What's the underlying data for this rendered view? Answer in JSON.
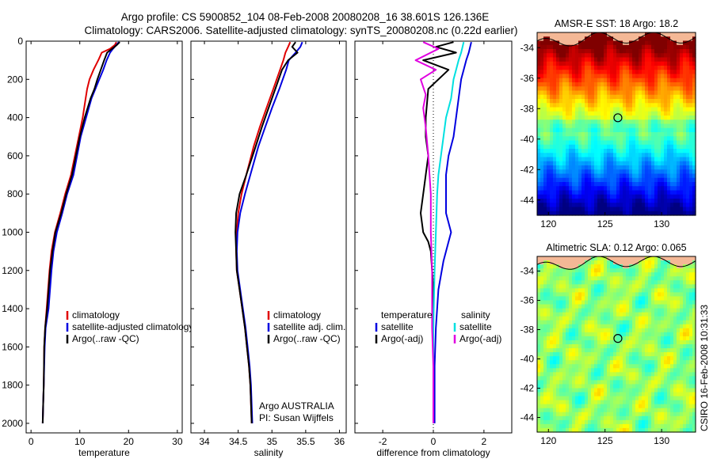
{
  "figure": {
    "title_line1": "Argo profile: CS 5900852_104 08-Feb-2008 20080208_16 38.601S 126.136E",
    "title_line2": "Climatology: CARS2006. Satellite-adjusted climatology: synTS_20080208.nc (0.22d earlier)",
    "footer_vertical": "CSIRO 16-Feb-2008 10:31:33"
  },
  "colors": {
    "climatology": "#e00000",
    "satellite": "#0000e0",
    "argo": "#000000",
    "temperature_diff": "#00e0e0",
    "salinity_diff": "#e000e0",
    "land": "#f4b896"
  },
  "chart_data": [
    {
      "type": "line",
      "xlabel": "temperature",
      "ylabel": "",
      "xlim": [
        -1,
        31
      ],
      "ylim": [
        2050,
        0
      ],
      "xticks": [
        "0",
        "10",
        "20",
        "30"
      ],
      "yticks": [
        "0",
        "200",
        "400",
        "600",
        "800",
        "1000",
        "1200",
        "1400",
        "1600",
        "1800",
        "2000"
      ],
      "legend": [
        "climatology",
        "satellite-adjusted climatology",
        "Argo(..raw -QC)"
      ],
      "series": [
        {
          "name": "climatology",
          "color": "#e00000",
          "x": [
            17.5,
            17.2,
            16.2,
            14.5,
            13.8,
            12.8,
            12.0,
            11.5,
            11.2,
            10.6,
            9.8,
            8.2,
            7.0,
            6.0,
            4.9,
            4.2,
            3.8,
            3.2,
            2.9,
            2.7,
            2.6,
            2.5,
            2.4
          ],
          "y": [
            5,
            20,
            40,
            60,
            100,
            150,
            200,
            250,
            300,
            400,
            500,
            700,
            800,
            900,
            1000,
            1100,
            1200,
            1400,
            1500,
            1600,
            1800,
            1900,
            2000
          ]
        },
        {
          "name": "satellite-adjusted climatology",
          "color": "#0000e0",
          "x": [
            18.0,
            17.5,
            16.8,
            16.2,
            15.5,
            14.8,
            14.0,
            13.2,
            12.4,
            11.3,
            10.2,
            8.7,
            7.4,
            6.4,
            5.3,
            4.6,
            4.2,
            3.6,
            3.0,
            2.8,
            2.6,
            2.5,
            2.4
          ],
          "y": [
            5,
            20,
            40,
            60,
            100,
            150,
            200,
            250,
            300,
            400,
            500,
            700,
            800,
            900,
            1000,
            1100,
            1200,
            1400,
            1500,
            1600,
            1800,
            1900,
            2000
          ]
        },
        {
          "name": "Argo(..raw -QC)",
          "color": "#000000",
          "x": [
            18.2,
            17.6,
            16.6,
            15.6,
            15.0,
            14.3,
            13.6,
            13.0,
            12.2,
            11.0,
            10.0,
            8.4,
            7.2,
            6.2,
            5.0,
            4.4,
            3.9,
            3.3,
            2.9,
            2.7,
            2.6,
            2.5,
            2.4
          ],
          "y": [
            5,
            20,
            40,
            60,
            100,
            150,
            200,
            250,
            300,
            400,
            500,
            700,
            800,
            900,
            1000,
            1100,
            1200,
            1400,
            1500,
            1600,
            1800,
            1900,
            2000
          ]
        }
      ]
    },
    {
      "type": "line",
      "xlabel": "salinity",
      "ylabel": "",
      "xlim": [
        33.8,
        36.1
      ],
      "ylim": [
        2050,
        0
      ],
      "xticks": [
        "34",
        "34.5",
        "35",
        "35.5",
        "36"
      ],
      "legend": [
        "climatology",
        "satellite adj. clim.",
        "Argo(..raw -QC)"
      ],
      "annotation": [
        "Argo AUSTRALIA",
        "PI: Susan Wijffels"
      ],
      "series": [
        {
          "name": "climatology",
          "color": "#e00000",
          "x": [
            35.27,
            35.24,
            35.2,
            35.17,
            35.12,
            35.02,
            34.92,
            34.82,
            34.73,
            34.62,
            34.55,
            34.5,
            34.48,
            34.47,
            34.48,
            34.52,
            34.56,
            34.6,
            34.63,
            34.66,
            34.68,
            34.7
          ],
          "y": [
            5,
            30,
            60,
            100,
            150,
            250,
            350,
            450,
            550,
            700,
            800,
            900,
            1000,
            1100,
            1200,
            1300,
            1400,
            1500,
            1600,
            1700,
            1800,
            2000
          ]
        },
        {
          "name": "satellite adj. clim.",
          "color": "#0000e0",
          "x": [
            35.45,
            35.42,
            35.35,
            35.25,
            35.21,
            35.11,
            35.0,
            34.9,
            34.8,
            34.68,
            34.6,
            34.53,
            34.49,
            34.48,
            34.49,
            34.53,
            34.57,
            34.61,
            34.64,
            34.67,
            34.69,
            34.71
          ],
          "y": [
            5,
            30,
            60,
            100,
            150,
            250,
            350,
            450,
            550,
            700,
            800,
            900,
            1000,
            1100,
            1200,
            1300,
            1400,
            1500,
            1600,
            1700,
            1800,
            2000
          ]
        },
        {
          "name": "Argo(..raw -QC)",
          "color": "#000000",
          "x": [
            35.35,
            35.3,
            35.38,
            35.24,
            35.15,
            35.05,
            34.95,
            34.85,
            34.76,
            34.62,
            34.52,
            34.47,
            34.46,
            34.47,
            34.48,
            34.52,
            34.56,
            34.6,
            34.63,
            34.66,
            34.68,
            34.7
          ],
          "y": [
            5,
            30,
            60,
            100,
            150,
            250,
            350,
            450,
            550,
            700,
            800,
            900,
            1000,
            1100,
            1200,
            1300,
            1400,
            1500,
            1600,
            1700,
            1800,
            2000
          ]
        }
      ]
    },
    {
      "type": "line",
      "xlabel": "difference from climatology",
      "ylabel": "",
      "xlim": [
        -3.1,
        3.1
      ],
      "ylim": [
        2050,
        0
      ],
      "xticks": [
        "-2",
        "0",
        "2"
      ],
      "legend": [
        "temperature",
        "satellite",
        "Argo(-adj)",
        "salinity",
        "satellite",
        "Argo(-adj)"
      ],
      "series": [
        {
          "name": "temperature satellite",
          "color": "#0000e0",
          "x": [
            1.5,
            1.4,
            1.3,
            1.2,
            1.1,
            1.0,
            0.9,
            0.8,
            0.6,
            0.5,
            0.5,
            0.5,
            0.6,
            0.7,
            0.6,
            0.5,
            0.4,
            0.2,
            0.1,
            0.05,
            0.05,
            0.05
          ],
          "y": [
            5,
            60,
            100,
            150,
            200,
            300,
            400,
            500,
            600,
            700,
            800,
            900,
            950,
            1000,
            1050,
            1100,
            1150,
            1300,
            1500,
            1700,
            1900,
            2000
          ]
        },
        {
          "name": "temperature Argo(-adj)",
          "color": "#000000",
          "x": [
            0.8,
            0.1,
            0.9,
            -0.4,
            0.6,
            -0.2,
            -0.3,
            -0.3,
            -0.2,
            -0.3,
            -0.4,
            -0.5,
            -0.4,
            -0.2,
            -0.1,
            0.0,
            0.0,
            0.0,
            0.0
          ],
          "y": [
            5,
            30,
            60,
            100,
            150,
            250,
            400,
            500,
            600,
            700,
            800,
            900,
            1000,
            1050,
            1100,
            1300,
            1500,
            1800,
            2000
          ]
        },
        {
          "name": "salinity satellite",
          "color": "#00e0e0",
          "x": [
            1.2,
            1.1,
            1.0,
            0.9,
            0.8,
            0.7,
            0.5,
            0.4,
            0.3,
            0.2,
            0.15,
            0.1,
            0.05,
            0.0,
            0.0,
            0.0
          ],
          "y": [
            5,
            60,
            100,
            150,
            200,
            300,
            400,
            500,
            600,
            700,
            800,
            1000,
            1200,
            1500,
            1800,
            2000
          ]
        },
        {
          "name": "salinity Argo(-adj)",
          "color": "#e000e0",
          "x": [
            -0.4,
            0.2,
            -0.7,
            0.1,
            -0.5,
            -0.3,
            -0.4,
            -0.3,
            -0.2,
            -0.1,
            -0.1,
            -0.05,
            -0.05,
            0.0,
            0.0,
            0.0
          ],
          "y": [
            5,
            40,
            100,
            150,
            200,
            280,
            350,
            450,
            600,
            800,
            1000,
            1200,
            1500,
            1700,
            1900,
            2000
          ]
        }
      ]
    },
    {
      "type": "heatmap",
      "title": "AMSR-E SST: 18 Argo: 18.2",
      "xlim": [
        119,
        133
      ],
      "ylim": [
        -45,
        -33
      ],
      "xticks": [
        "120",
        "125",
        "130"
      ],
      "yticks": [
        "-34",
        "-36",
        "-38",
        "-40",
        "-42",
        "-44"
      ],
      "argo_location": {
        "lon": 126.136,
        "lat": -38.601
      }
    },
    {
      "type": "heatmap",
      "title": "Altimetric SLA: 0.12 Argo: 0.065",
      "xlim": [
        119,
        133
      ],
      "ylim": [
        -45,
        -33
      ],
      "xticks": [
        "120",
        "125",
        "130"
      ],
      "yticks": [
        "-34",
        "-36",
        "-38",
        "-40",
        "-42",
        "-44"
      ],
      "argo_location": {
        "lon": 126.136,
        "lat": -38.601
      }
    }
  ]
}
